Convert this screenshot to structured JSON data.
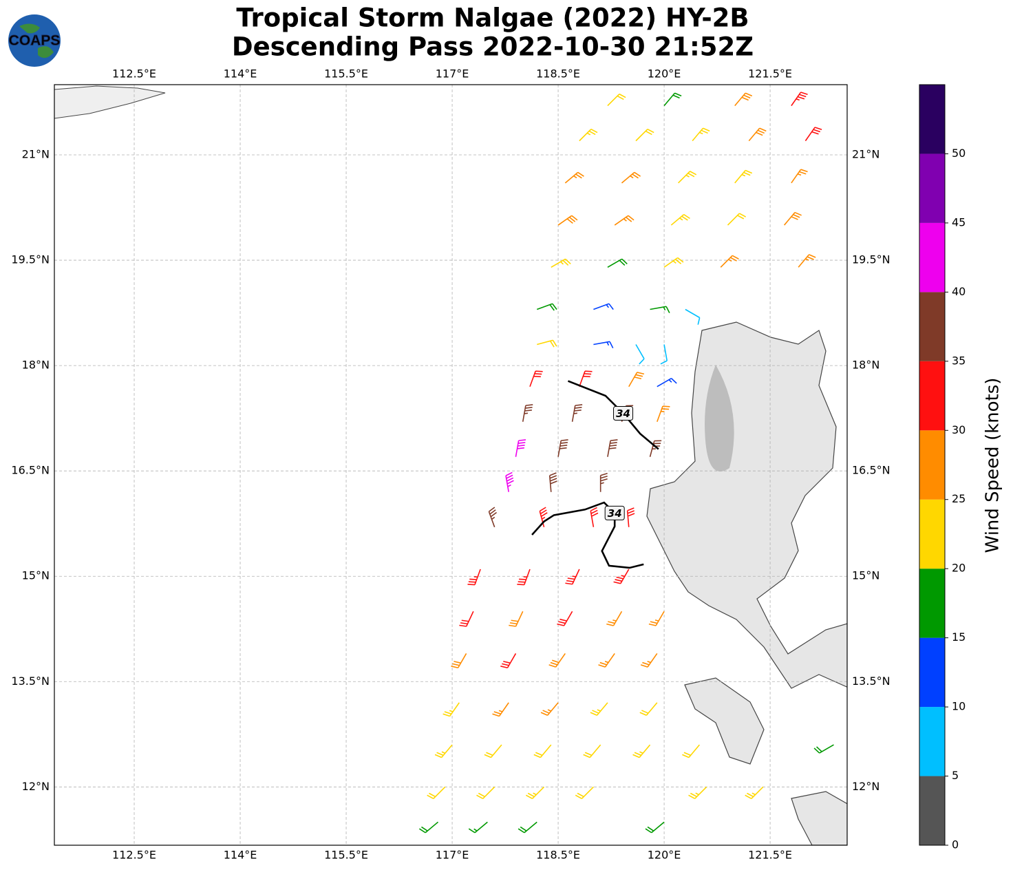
{
  "header": {
    "title": "Tropical Storm Nalgae (2022) HY-2B",
    "subtitle": "Descending Pass 2022-10-30 21:52Z",
    "logo_text": "COAPS"
  },
  "map": {
    "xlim": [
      111.37,
      122.59
    ],
    "ylim": [
      11.17,
      22.0
    ],
    "xticks": [
      {
        "value": 112.5,
        "label": "112.5°E"
      },
      {
        "value": 114,
        "label": "114°E"
      },
      {
        "value": 115.5,
        "label": "115.5°E"
      },
      {
        "value": 117,
        "label": "117°E"
      },
      {
        "value": 118.5,
        "label": "118.5°E"
      },
      {
        "value": 120,
        "label": "120°E"
      },
      {
        "value": 121.5,
        "label": "121.5°E"
      }
    ],
    "yticks": [
      {
        "value": 12,
        "label": "12°N"
      },
      {
        "value": 13.5,
        "label": "13.5°N"
      },
      {
        "value": 15,
        "label": "15°N"
      },
      {
        "value": 16.5,
        "label": "16.5°N"
      },
      {
        "value": 18,
        "label": "18°N"
      },
      {
        "value": 19.5,
        "label": "19.5°N"
      },
      {
        "value": 21,
        "label": "21°N"
      }
    ],
    "grid": true
  },
  "colorbar": {
    "label": "Wind Speed (knots)",
    "bins": [
      0,
      5,
      10,
      15,
      20,
      25,
      30,
      35,
      40,
      45,
      50,
      55
    ],
    "colors": [
      "#555555",
      "#00bfff",
      "#0040ff",
      "#009900",
      "#ffd700",
      "#ff8c00",
      "#ff1010",
      "#7f3a28",
      "#ee00ee",
      "#8000b0",
      "#2a0060"
    ],
    "ticks": [
      0,
      5,
      10,
      15,
      20,
      25,
      30,
      35,
      40,
      45,
      50
    ]
  },
  "barbs": {
    "lon": [
      119.2,
      120.0,
      121.0,
      121.8,
      118.8,
      119.6,
      120.4,
      121.2,
      122.0,
      118.6,
      119.4,
      120.2,
      121.0,
      121.8,
      118.5,
      119.3,
      120.1,
      120.9,
      121.7,
      118.4,
      119.2,
      120.0,
      120.8,
      121.9,
      118.2,
      119.0,
      119.8,
      120.3,
      118.2,
      119.0,
      119.6,
      120.0,
      118.1,
      118.8,
      119.5,
      119.9,
      118.0,
      118.7,
      119.4,
      119.9,
      117.9,
      118.5,
      119.2,
      119.8,
      117.8,
      118.4,
      119.1,
      117.6,
      118.3,
      119.0,
      119.5,
      117.4,
      118.1,
      118.8,
      119.5,
      117.3,
      118.0,
      118.7,
      119.4,
      120.0,
      117.2,
      117.9,
      118.6,
      119.3,
      119.9,
      117.1,
      117.8,
      118.5,
      119.2,
      119.9,
      117.0,
      117.7,
      118.4,
      119.1,
      119.8,
      120.5,
      116.9,
      117.6,
      118.3,
      119.0,
      120.6,
      121.4,
      116.8,
      117.5,
      118.2,
      120.0,
      122.4
    ],
    "lat": [
      21.7,
      21.7,
      21.7,
      21.7,
      21.2,
      21.2,
      21.2,
      21.2,
      21.2,
      20.6,
      20.6,
      20.6,
      20.6,
      20.6,
      20.0,
      20.0,
      20.0,
      20.0,
      20.0,
      19.4,
      19.4,
      19.4,
      19.4,
      19.4,
      18.8,
      18.8,
      18.8,
      18.8,
      18.3,
      18.3,
      18.3,
      18.3,
      17.7,
      17.7,
      17.7,
      17.7,
      17.2,
      17.2,
      17.2,
      17.2,
      16.7,
      16.7,
      16.7,
      16.7,
      16.2,
      16.2,
      16.2,
      15.7,
      15.7,
      15.7,
      15.7,
      15.1,
      15.1,
      15.1,
      15.1,
      14.5,
      14.5,
      14.5,
      14.5,
      14.5,
      13.9,
      13.9,
      13.9,
      13.9,
      13.9,
      13.2,
      13.2,
      13.2,
      13.2,
      13.2,
      12.6,
      12.6,
      12.6,
      12.6,
      12.6,
      12.6,
      12.0,
      12.0,
      12.0,
      12.0,
      12.0,
      12.0,
      11.5,
      11.5,
      11.5,
      11.5,
      12.6
    ],
    "speed": [
      22,
      18,
      28,
      33,
      24,
      22,
      24,
      28,
      32,
      27,
      25,
      23,
      24,
      27,
      28,
      26,
      23,
      22,
      28,
      23,
      18,
      23,
      25,
      27,
      18,
      14,
      16,
      9,
      21,
      13,
      8,
      8,
      32,
      30,
      28,
      13,
      37,
      36,
      37,
      25,
      42,
      38,
      38,
      37,
      44,
      38,
      36,
      37,
      33,
      32,
      31,
      33,
      33,
      34,
      33,
      31,
      29,
      32,
      27,
      27,
      28,
      32,
      28,
      27,
      26,
      24,
      27,
      25,
      24,
      22,
      23,
      22,
      22,
      22,
      23,
      22,
      22,
      22,
      23,
      22,
      24,
      23,
      18,
      17,
      18,
      18,
      18
    ],
    "dir": [
      45,
      40,
      40,
      35,
      45,
      45,
      40,
      40,
      35,
      50,
      50,
      45,
      40,
      35,
      55,
      55,
      50,
      45,
      40,
      60,
      60,
      55,
      45,
      40,
      70,
      70,
      80,
      120,
      75,
      80,
      150,
      170,
      20,
      20,
      30,
      60,
      10,
      10,
      15,
      20,
      10,
      10,
      10,
      15,
      350,
      355,
      0,
      340,
      345,
      350,
      355,
      200,
      200,
      205,
      210,
      205,
      205,
      210,
      210,
      210,
      210,
      210,
      215,
      215,
      215,
      215,
      215,
      220,
      220,
      220,
      220,
      220,
      220,
      220,
      220,
      220,
      225,
      225,
      225,
      225,
      225,
      225,
      230,
      230,
      230,
      230,
      240
    ]
  },
  "contours": [
    {
      "level": 34,
      "lon": [
        118.64,
        119.17,
        119.42,
        119.66,
        119.92
      ],
      "lat": [
        17.78,
        17.57,
        17.32,
        17.03,
        16.81
      ]
    },
    {
      "level": 34,
      "lon": [
        118.13,
        118.3,
        118.44,
        118.88,
        119.15,
        119.3,
        119.3,
        119.12,
        119.22,
        119.51,
        119.71
      ],
      "lat": [
        15.59,
        15.78,
        15.87,
        15.95,
        16.05,
        15.9,
        15.71,
        15.36,
        15.15,
        15.12,
        15.17
      ]
    }
  ]
}
